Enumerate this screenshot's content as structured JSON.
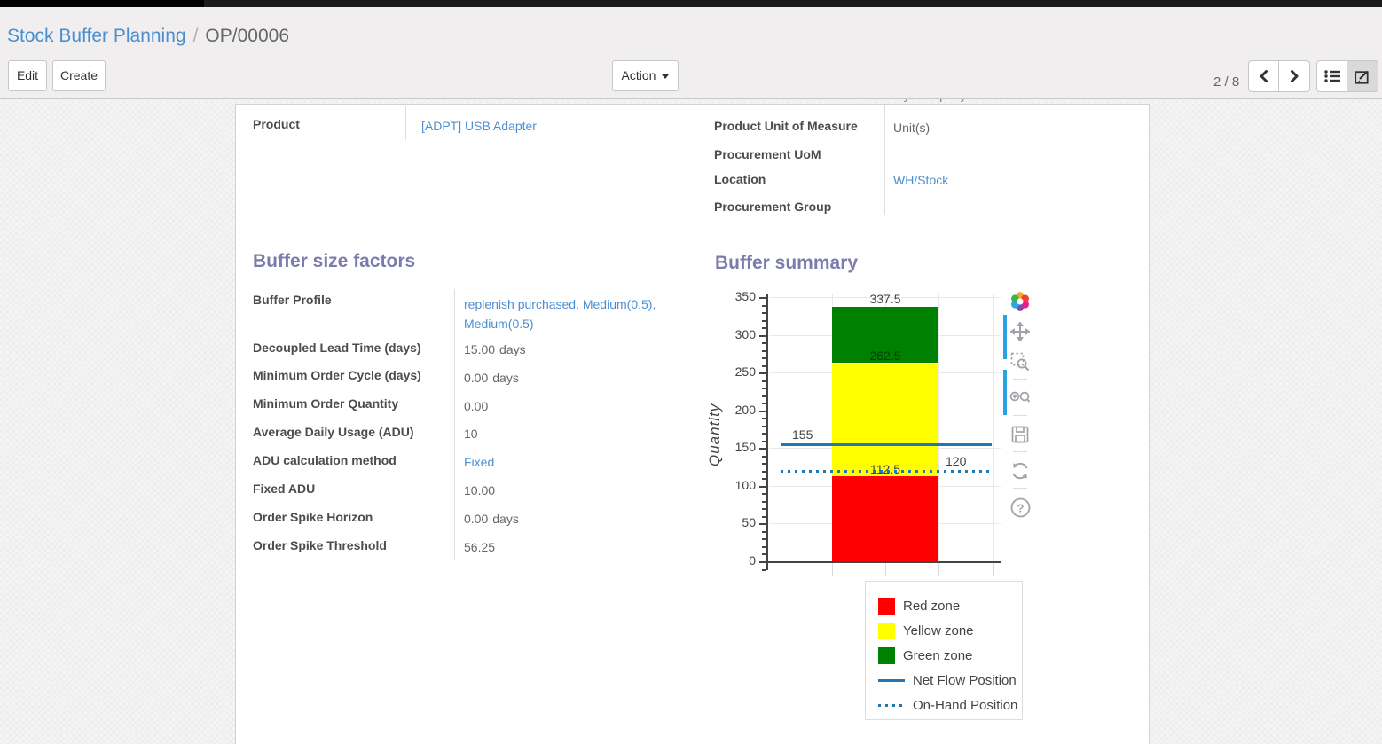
{
  "breadcrumb": {
    "parent": "Stock Buffer Planning",
    "separator": "/",
    "current": "OP/00006"
  },
  "toolbar": {
    "edit_label": "Edit",
    "create_label": "Create",
    "action_label": "Action",
    "pager": "2 / 8",
    "icons": [
      "prev-icon",
      "next-icon",
      "list-view-icon",
      "form-view-icon"
    ]
  },
  "form": {
    "product": {
      "label": "Product",
      "value": "[ADPT] USB Adapter"
    },
    "company_partial": {
      "value": "My Company"
    },
    "right_fields": [
      {
        "label": "Product Unit of Measure",
        "value": "Unit(s)"
      },
      {
        "label": "Procurement UoM",
        "value": ""
      },
      {
        "label": "Location",
        "value": "WH/Stock"
      },
      {
        "label": "Procurement Group",
        "value": ""
      }
    ],
    "sections": {
      "factors_title": "Buffer size factors",
      "summary_title": "Buffer summary"
    },
    "factors": [
      {
        "label": "Buffer Profile",
        "value": "replenish purchased, Medium(0.5), Medium(0.5)"
      },
      {
        "label": "Decoupled Lead Time (days)",
        "value": "15.00",
        "unit": "days"
      },
      {
        "label": "Minimum Order Cycle (days)",
        "value": "0.00",
        "unit": "days"
      },
      {
        "label": "Minimum Order Quantity",
        "value": "0.00"
      },
      {
        "label": "Average Daily Usage (ADU)",
        "value": "10"
      },
      {
        "label": "ADU calculation method",
        "value": "Fixed"
      },
      {
        "label": "Fixed ADU",
        "value": "10.00"
      },
      {
        "label": "Order Spike Horizon",
        "value": "0.00",
        "unit": "days"
      },
      {
        "label": "Order Spike Threshold",
        "value": "56.25"
      }
    ]
  },
  "chart_data": {
    "type": "bar",
    "title": "Buffer summary",
    "xlabel": "",
    "ylabel": "Quantity",
    "ylim": [
      0,
      350
    ],
    "ytick_major": 50,
    "ytick_minor": 10,
    "grid": true,
    "zones": [
      {
        "name": "Red zone",
        "from": 0,
        "to": 112.5,
        "color": "#ff0000"
      },
      {
        "name": "Yellow zone",
        "from": 112.5,
        "to": 262.5,
        "color": "#ffff00"
      },
      {
        "name": "Green zone",
        "from": 262.5,
        "to": 337.5,
        "color": "#008000"
      }
    ],
    "stack_labels": [
      "337.5",
      "262.5",
      "112.5"
    ],
    "lines": [
      {
        "name": "Net Flow Position",
        "value": 155,
        "label": "155",
        "style": "solid",
        "color": "#1f77b4"
      },
      {
        "name": "On-Hand Position",
        "value": 120,
        "label": "120",
        "style": "dotted",
        "color": "#1f77b4"
      }
    ],
    "legend_items": [
      {
        "label": "Red zone",
        "swatch": "square",
        "color": "#ff0000"
      },
      {
        "label": "Yellow zone",
        "swatch": "square",
        "color": "#ffff00"
      },
      {
        "label": "Green zone",
        "swatch": "square",
        "color": "#008000"
      },
      {
        "label": "Net Flow Position",
        "swatch": "line",
        "color": "#1f77b4"
      },
      {
        "label": "On-Hand Position",
        "swatch": "dots",
        "color": "#1f77b4"
      }
    ],
    "legend_position": "bottom-right",
    "modebar_icons": [
      "plotly-logo",
      "pan-icon",
      "box-zoom-icon",
      "zoom-in-out-icon",
      "save-icon",
      "reset-axes-icon",
      "help-icon"
    ]
  },
  "colors": {
    "accent_purple": "#7c7bad",
    "link_blue": "#4c8fd0",
    "chart_blue": "#1f77b4",
    "header_bg": "#f0eeee",
    "modebar_grey": "#a2a2aa"
  }
}
